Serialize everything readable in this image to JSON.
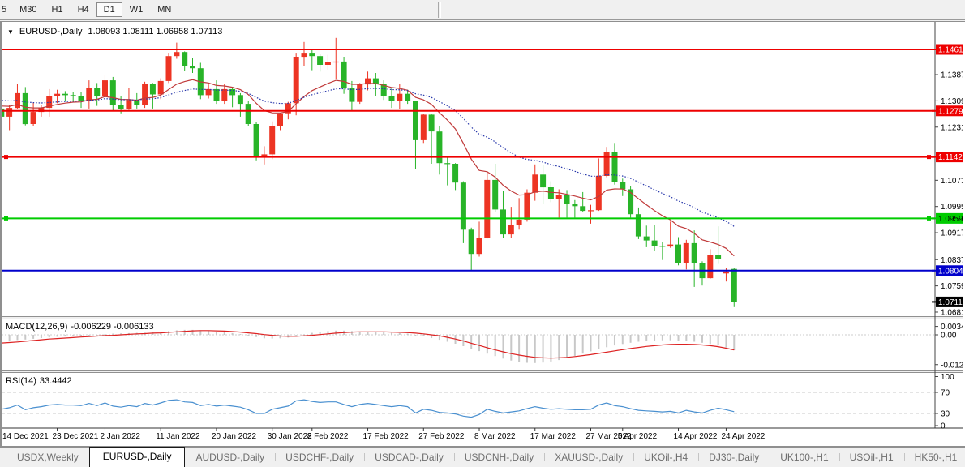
{
  "toolbar": {
    "timeframes": [
      "5",
      "M30",
      "H1",
      "H4",
      "D1",
      "W1",
      "MN"
    ],
    "active_timeframe": "D1"
  },
  "window": {
    "collapse_icon": "▼",
    "symbol_title": "EURUSD-,Daily",
    "ohlc_line": "1.08093 1.08111 1.06958 1.07113"
  },
  "chart_data": [
    {
      "type": "candlestick",
      "symbol": "EURUSD-,Daily",
      "ohlc_current": {
        "open": "1.08093",
        "high": "1.08111",
        "low": "1.06958",
        "close": "1.07113"
      },
      "colors": {
        "bull": "#ed3423",
        "bear": "#28b428",
        "ma_fast": "#c03a3a",
        "ma_slow": "#2636aa"
      },
      "ylim": [
        1.0674,
        1.1503
      ],
      "y_ticks": [
        "1.13870",
        "1.13090",
        "1.12310",
        "1.10730",
        "1.09950",
        "1.09170",
        "1.08370",
        "1.07590",
        "1.06810"
      ],
      "hlines": [
        {
          "price": 1.14618,
          "label": "1.14618",
          "color": "#ee0000",
          "text_color": "#ffffff",
          "handles": false
        },
        {
          "price": 1.12792,
          "label": "1.12792",
          "color": "#ee0000",
          "text_color": "#ffffff",
          "handles": false
        },
        {
          "price": 1.11422,
          "label": "1.11422",
          "color": "#ee0000",
          "text_color": "#ffffff",
          "handles": true
        },
        {
          "price": 1.09596,
          "label": "1.09596",
          "color": "#00cc00",
          "text_color": "#000000",
          "handles": true
        },
        {
          "price": 1.08044,
          "label": "1.08044",
          "color": "#0000cc",
          "text_color": "#ffffff",
          "handles": false
        }
      ],
      "current_price": {
        "price": 1.07113,
        "label": "1.07113",
        "bg": "#000000",
        "text_color": "#ffffff"
      },
      "moving_averages": [
        {
          "period": 13,
          "seed": 1.13,
          "color": "#c03a3a",
          "dash": ""
        },
        {
          "period": 30,
          "seed": 1.1315,
          "color": "#2636aa",
          "dash": "1.5,2"
        }
      ],
      "date_labels": [
        {
          "i": 1,
          "label": "14 Dec 2021"
        },
        {
          "i": 8,
          "label": "23 Dec 2021"
        },
        {
          "i": 14,
          "label": "2 Jan 2022"
        },
        {
          "i": 21,
          "label": "11 Jan 2022"
        },
        {
          "i": 28,
          "label": "20 Jan 2022"
        },
        {
          "i": 35,
          "label": "30 Jan 2022"
        },
        {
          "i": 40,
          "label": "8 Feb 2022"
        },
        {
          "i": 47,
          "label": "17 Feb 2022"
        },
        {
          "i": 54,
          "label": "27 Feb 2022"
        },
        {
          "i": 61,
          "label": "8 Mar 2022"
        },
        {
          "i": 68,
          "label": "17 Mar 2022"
        },
        {
          "i": 75,
          "label": "27 Mar 2022"
        },
        {
          "i": 79,
          "label": "5 Apr 2022"
        },
        {
          "i": 86,
          "label": "14 Apr 2022"
        },
        {
          "i": 92,
          "label": "24 Apr 2022"
        }
      ],
      "candles": [
        [
          1.13,
          1.133,
          1.128,
          1.1292
        ],
        [
          1.1286,
          1.1322,
          1.1258,
          1.1262
        ],
        [
          1.1262,
          1.1296,
          1.1222,
          1.1288
        ],
        [
          1.1288,
          1.136,
          1.1286,
          1.1332
        ],
        [
          1.1332,
          1.135,
          1.1236,
          1.124
        ],
        [
          1.124,
          1.1304,
          1.1234,
          1.1276
        ],
        [
          1.1276,
          1.1298,
          1.1262,
          1.1288
        ],
        [
          1.1288,
          1.1344,
          1.1262,
          1.1324
        ],
        [
          1.1324,
          1.1342,
          1.1302,
          1.133
        ],
        [
          1.133,
          1.1338,
          1.1308,
          1.1326
        ],
        [
          1.1326,
          1.1336,
          1.1304,
          1.1322
        ],
        [
          1.1322,
          1.1334,
          1.1288,
          1.131
        ],
        [
          1.131,
          1.137,
          1.1286,
          1.1348
        ],
        [
          1.1348,
          1.1362,
          1.1294,
          1.1324
        ],
        [
          1.1324,
          1.1386,
          1.132,
          1.137
        ],
        [
          1.137,
          1.138,
          1.128,
          1.1298
        ],
        [
          1.1298,
          1.1324,
          1.1272,
          1.1284
        ],
        [
          1.1284,
          1.1346,
          1.1282,
          1.1312
        ],
        [
          1.1312,
          1.1332,
          1.1286,
          1.1296
        ],
        [
          1.1296,
          1.1366,
          1.1288,
          1.136
        ],
        [
          1.136,
          1.1362,
          1.1286,
          1.1328
        ],
        [
          1.1328,
          1.1376,
          1.1314,
          1.1368
        ],
        [
          1.1368,
          1.1452,
          1.1362,
          1.1442
        ],
        [
          1.1442,
          1.1482,
          1.1434,
          1.1454
        ],
        [
          1.1454,
          1.1456,
          1.1398,
          1.1412
        ],
        [
          1.1412,
          1.1436,
          1.1392,
          1.1406
        ],
        [
          1.1406,
          1.1422,
          1.1314,
          1.1326
        ],
        [
          1.1326,
          1.1358,
          1.1316,
          1.1344
        ],
        [
          1.1344,
          1.137,
          1.13,
          1.131
        ],
        [
          1.131,
          1.136,
          1.13,
          1.1344
        ],
        [
          1.1344,
          1.1348,
          1.129,
          1.1326
        ],
        [
          1.1326,
          1.1332,
          1.1262,
          1.13
        ],
        [
          1.13,
          1.131,
          1.1234,
          1.124
        ],
        [
          1.124,
          1.1246,
          1.1132,
          1.1144
        ],
        [
          1.1144,
          1.1174,
          1.112,
          1.115
        ],
        [
          1.115,
          1.1248,
          1.1136,
          1.1234
        ],
        [
          1.1234,
          1.1274,
          1.1222,
          1.1272
        ],
        [
          1.1272,
          1.1306,
          1.1254,
          1.1302
        ],
        [
          1.1302,
          1.1452,
          1.1266,
          1.144
        ],
        [
          1.144,
          1.1484,
          1.1412,
          1.1452
        ],
        [
          1.1452,
          1.1462,
          1.14,
          1.1442
        ],
        [
          1.1442,
          1.1448,
          1.1396,
          1.1416
        ],
        [
          1.1416,
          1.1446,
          1.1402,
          1.1424
        ],
        [
          1.1424,
          1.1496,
          1.1374,
          1.1426
        ],
        [
          1.1426,
          1.144,
          1.133,
          1.1348
        ],
        [
          1.1348,
          1.1368,
          1.1278,
          1.1306
        ],
        [
          1.1306,
          1.1362,
          1.13,
          1.1358
        ],
        [
          1.1358,
          1.1396,
          1.134,
          1.1376
        ],
        [
          1.1376,
          1.1392,
          1.1324,
          1.136
        ],
        [
          1.136,
          1.137,
          1.1312,
          1.1322
        ],
        [
          1.1322,
          1.1346,
          1.1288,
          1.131
        ],
        [
          1.131,
          1.136,
          1.1284,
          1.133
        ],
        [
          1.133,
          1.1342,
          1.13,
          1.1308
        ],
        [
          1.1308,
          1.131,
          1.1106,
          1.1192
        ],
        [
          1.1192,
          1.127,
          1.1184,
          1.1268
        ],
        [
          1.1268,
          1.127,
          1.1122,
          1.1218
        ],
        [
          1.1218,
          1.1234,
          1.109,
          1.1124
        ],
        [
          1.1124,
          1.114,
          1.1058,
          1.1122
        ],
        [
          1.1122,
          1.1124,
          1.1044,
          1.1066
        ],
        [
          1.1066,
          1.107,
          1.0886,
          1.0926
        ],
        [
          1.0926,
          1.0932,
          1.0806,
          1.0854
        ],
        [
          1.0854,
          1.095,
          1.0846,
          1.0902
        ],
        [
          1.0902,
          1.1096,
          1.09,
          1.1074
        ],
        [
          1.1074,
          1.1122,
          1.0978,
          1.0986
        ],
        [
          1.0986,
          1.1042,
          1.0902,
          1.0912
        ],
        [
          1.0912,
          1.0994,
          1.0902,
          1.094
        ],
        [
          1.094,
          1.102,
          1.0926,
          1.0956
        ],
        [
          1.0956,
          1.1046,
          1.095,
          1.1036
        ],
        [
          1.1036,
          1.112,
          1.1012,
          1.109
        ],
        [
          1.109,
          1.1118,
          1.1002,
          1.1052
        ],
        [
          1.1052,
          1.107,
          1.1008,
          1.1016
        ],
        [
          1.1016,
          1.1046,
          1.0962,
          1.1028
        ],
        [
          1.1028,
          1.1044,
          1.0962,
          1.1004
        ],
        [
          1.1004,
          1.1014,
          1.0962,
          1.0996
        ],
        [
          1.0996,
          1.1038,
          1.098,
          1.0982
        ],
        [
          1.0982,
          1.1,
          1.0944,
          1.0984
        ],
        [
          1.0984,
          1.1138,
          1.0982,
          1.1086
        ],
        [
          1.1086,
          1.1172,
          1.1082,
          1.1158
        ],
        [
          1.1158,
          1.1184,
          1.106,
          1.1068
        ],
        [
          1.1068,
          1.1078,
          1.1026,
          1.1046
        ],
        [
          1.1046,
          1.1056,
          1.0962,
          1.0972
        ],
        [
          1.0972,
          1.0992,
          1.0898,
          1.0906
        ],
        [
          1.0906,
          1.0938,
          1.0874,
          1.0894
        ],
        [
          1.0894,
          1.094,
          1.0864,
          1.0878
        ],
        [
          1.0878,
          1.089,
          1.0836,
          1.0876
        ],
        [
          1.0876,
          1.095,
          1.0872,
          1.0882
        ],
        [
          1.0882,
          1.0904,
          1.082,
          1.0826
        ],
        [
          1.0826,
          1.0896,
          1.0808,
          1.0886
        ],
        [
          1.0886,
          1.0924,
          1.0756,
          1.0828
        ],
        [
          1.0828,
          1.0832,
          1.076,
          1.0782
        ],
        [
          1.0782,
          1.0868,
          1.078,
          1.085
        ],
        [
          1.085,
          1.0936,
          1.0824,
          1.0838
        ],
        [
          1.0796,
          1.0812,
          1.0772,
          1.0802
        ],
        [
          1.08093,
          1.08111,
          1.06958,
          1.07113
        ]
      ]
    },
    {
      "type": "bar",
      "label": "MACD(12,26,9)",
      "values_label": "-0.006229 -0.006133",
      "unit": 0.001,
      "bar_color": "#c8c8c8",
      "signal_color": "#dd2222",
      "y_ticks": [
        {
          "v": 3.408,
          "label": "0.003408"
        },
        {
          "v": 0,
          "label": "0.00"
        },
        {
          "v": -12.05,
          "label": "-0.01205"
        }
      ],
      "histogram": [
        -2.7,
        -2.6,
        -2.4,
        -2.1,
        -1.9,
        -1.6,
        -1.3,
        -1.0,
        -0.8,
        -0.7,
        -0.6,
        -0.4,
        -0.2,
        0.0,
        0.3,
        0.5,
        0.6,
        0.7,
        0.8,
        0.9,
        1.0,
        1.2,
        1.5,
        1.8,
        2.0,
        2.0,
        1.8,
        1.6,
        1.3,
        1.0,
        0.7,
        0.3,
        -0.2,
        -0.9,
        -1.4,
        -1.5,
        -1.4,
        -1.1,
        -0.5,
        0.2,
        0.8,
        1.2,
        1.5,
        1.7,
        1.7,
        1.5,
        1.3,
        1.2,
        1.1,
        1.0,
        0.8,
        0.7,
        0.5,
        0.0,
        -0.6,
        -1.3,
        -2.0,
        -2.8,
        -3.6,
        -4.6,
        -5.6,
        -6.6,
        -7.6,
        -8.6,
        -9.6,
        -10.4,
        -11.0,
        -11.3,
        -11.4,
        -11.2,
        -10.8,
        -10.2,
        -9.4,
        -8.5,
        -7.6,
        -6.7,
        -5.8,
        -5.0,
        -4.3,
        -3.7,
        -3.2,
        -2.8,
        -2.5,
        -2.3,
        -2.2,
        -2.2,
        -2.3,
        -2.5,
        -2.8,
        -3.2,
        -3.7,
        -4.3,
        -5.1,
        -6.229
      ],
      "signal": [
        -3.4,
        -3.3,
        -3.1,
        -2.9,
        -2.6,
        -2.3,
        -2.0,
        -1.7,
        -1.5,
        -1.3,
        -1.1,
        -0.9,
        -0.7,
        -0.5,
        -0.3,
        -0.2,
        0.0,
        0.2,
        0.4,
        0.5,
        0.7,
        0.8,
        1.0,
        1.2,
        1.4,
        1.6,
        1.7,
        1.7,
        1.6,
        1.5,
        1.3,
        1.1,
        0.8,
        0.5,
        0.1,
        -0.2,
        -0.5,
        -0.6,
        -0.6,
        -0.4,
        -0.2,
        0.1,
        0.4,
        0.7,
        0.9,
        1.1,
        1.2,
        1.2,
        1.2,
        1.2,
        1.1,
        1.0,
        0.9,
        0.7,
        0.4,
        0.0,
        -0.4,
        -1.0,
        -1.7,
        -2.5,
        -3.4,
        -4.3,
        -5.2,
        -6.1,
        -6.9,
        -7.6,
        -8.2,
        -8.7,
        -9.1,
        -9.3,
        -9.4,
        -9.3,
        -9.1,
        -8.8,
        -8.4,
        -8.0,
        -7.5,
        -7.0,
        -6.5,
        -6.0,
        -5.5,
        -5.1,
        -4.7,
        -4.4,
        -4.1,
        -3.9,
        -3.8,
        -3.8,
        -3.9,
        -4.1,
        -4.4,
        -4.8,
        -5.4,
        -6.133
      ]
    },
    {
      "type": "line",
      "label": "RSI(14)",
      "value_label": "33.4442",
      "color": "#4a90d0",
      "levels": [
        70,
        30
      ],
      "y_ticks": [
        {
          "v": 100,
          "label": "100"
        },
        {
          "v": 70,
          "label": "70"
        },
        {
          "v": 30,
          "label": "30"
        },
        {
          "v": 0,
          "label": "0"
        }
      ],
      "values": [
        39,
        38,
        41,
        46,
        37,
        41,
        43,
        46,
        47,
        46,
        46,
        45,
        49,
        45,
        50,
        44,
        42,
        45,
        43,
        49,
        46,
        50,
        55,
        56,
        52,
        51,
        45,
        47,
        44,
        46,
        44,
        42,
        37,
        30,
        30,
        38,
        41,
        44,
        54,
        56,
        53,
        51,
        52,
        52,
        47,
        43,
        47,
        49,
        47,
        45,
        43,
        45,
        43,
        31,
        38,
        36,
        32,
        31,
        29,
        25,
        23,
        28,
        38,
        34,
        31,
        33,
        35,
        39,
        43,
        40,
        38,
        39,
        38,
        37,
        37,
        38,
        46,
        50,
        45,
        43,
        39,
        36,
        35,
        34,
        33,
        34,
        31,
        36,
        33,
        31,
        36,
        40,
        37,
        33.4442
      ]
    }
  ],
  "tabs": {
    "items": [
      "USDX,Weekly",
      "EURUSD-,Daily",
      "AUDUSD-,Daily",
      "USDCHF-,Daily",
      "USDCAD-,Daily",
      "USDCNH-,Daily",
      "XAUUSD-,Daily",
      "UKOil-,H4",
      "DJ30-,Daily",
      "UK100-,H1",
      "USOil-,H1",
      "HK50-,H1"
    ],
    "active": "EURUSD-,Daily",
    "left_arrow": "◂",
    "right_arrow": "▸"
  }
}
